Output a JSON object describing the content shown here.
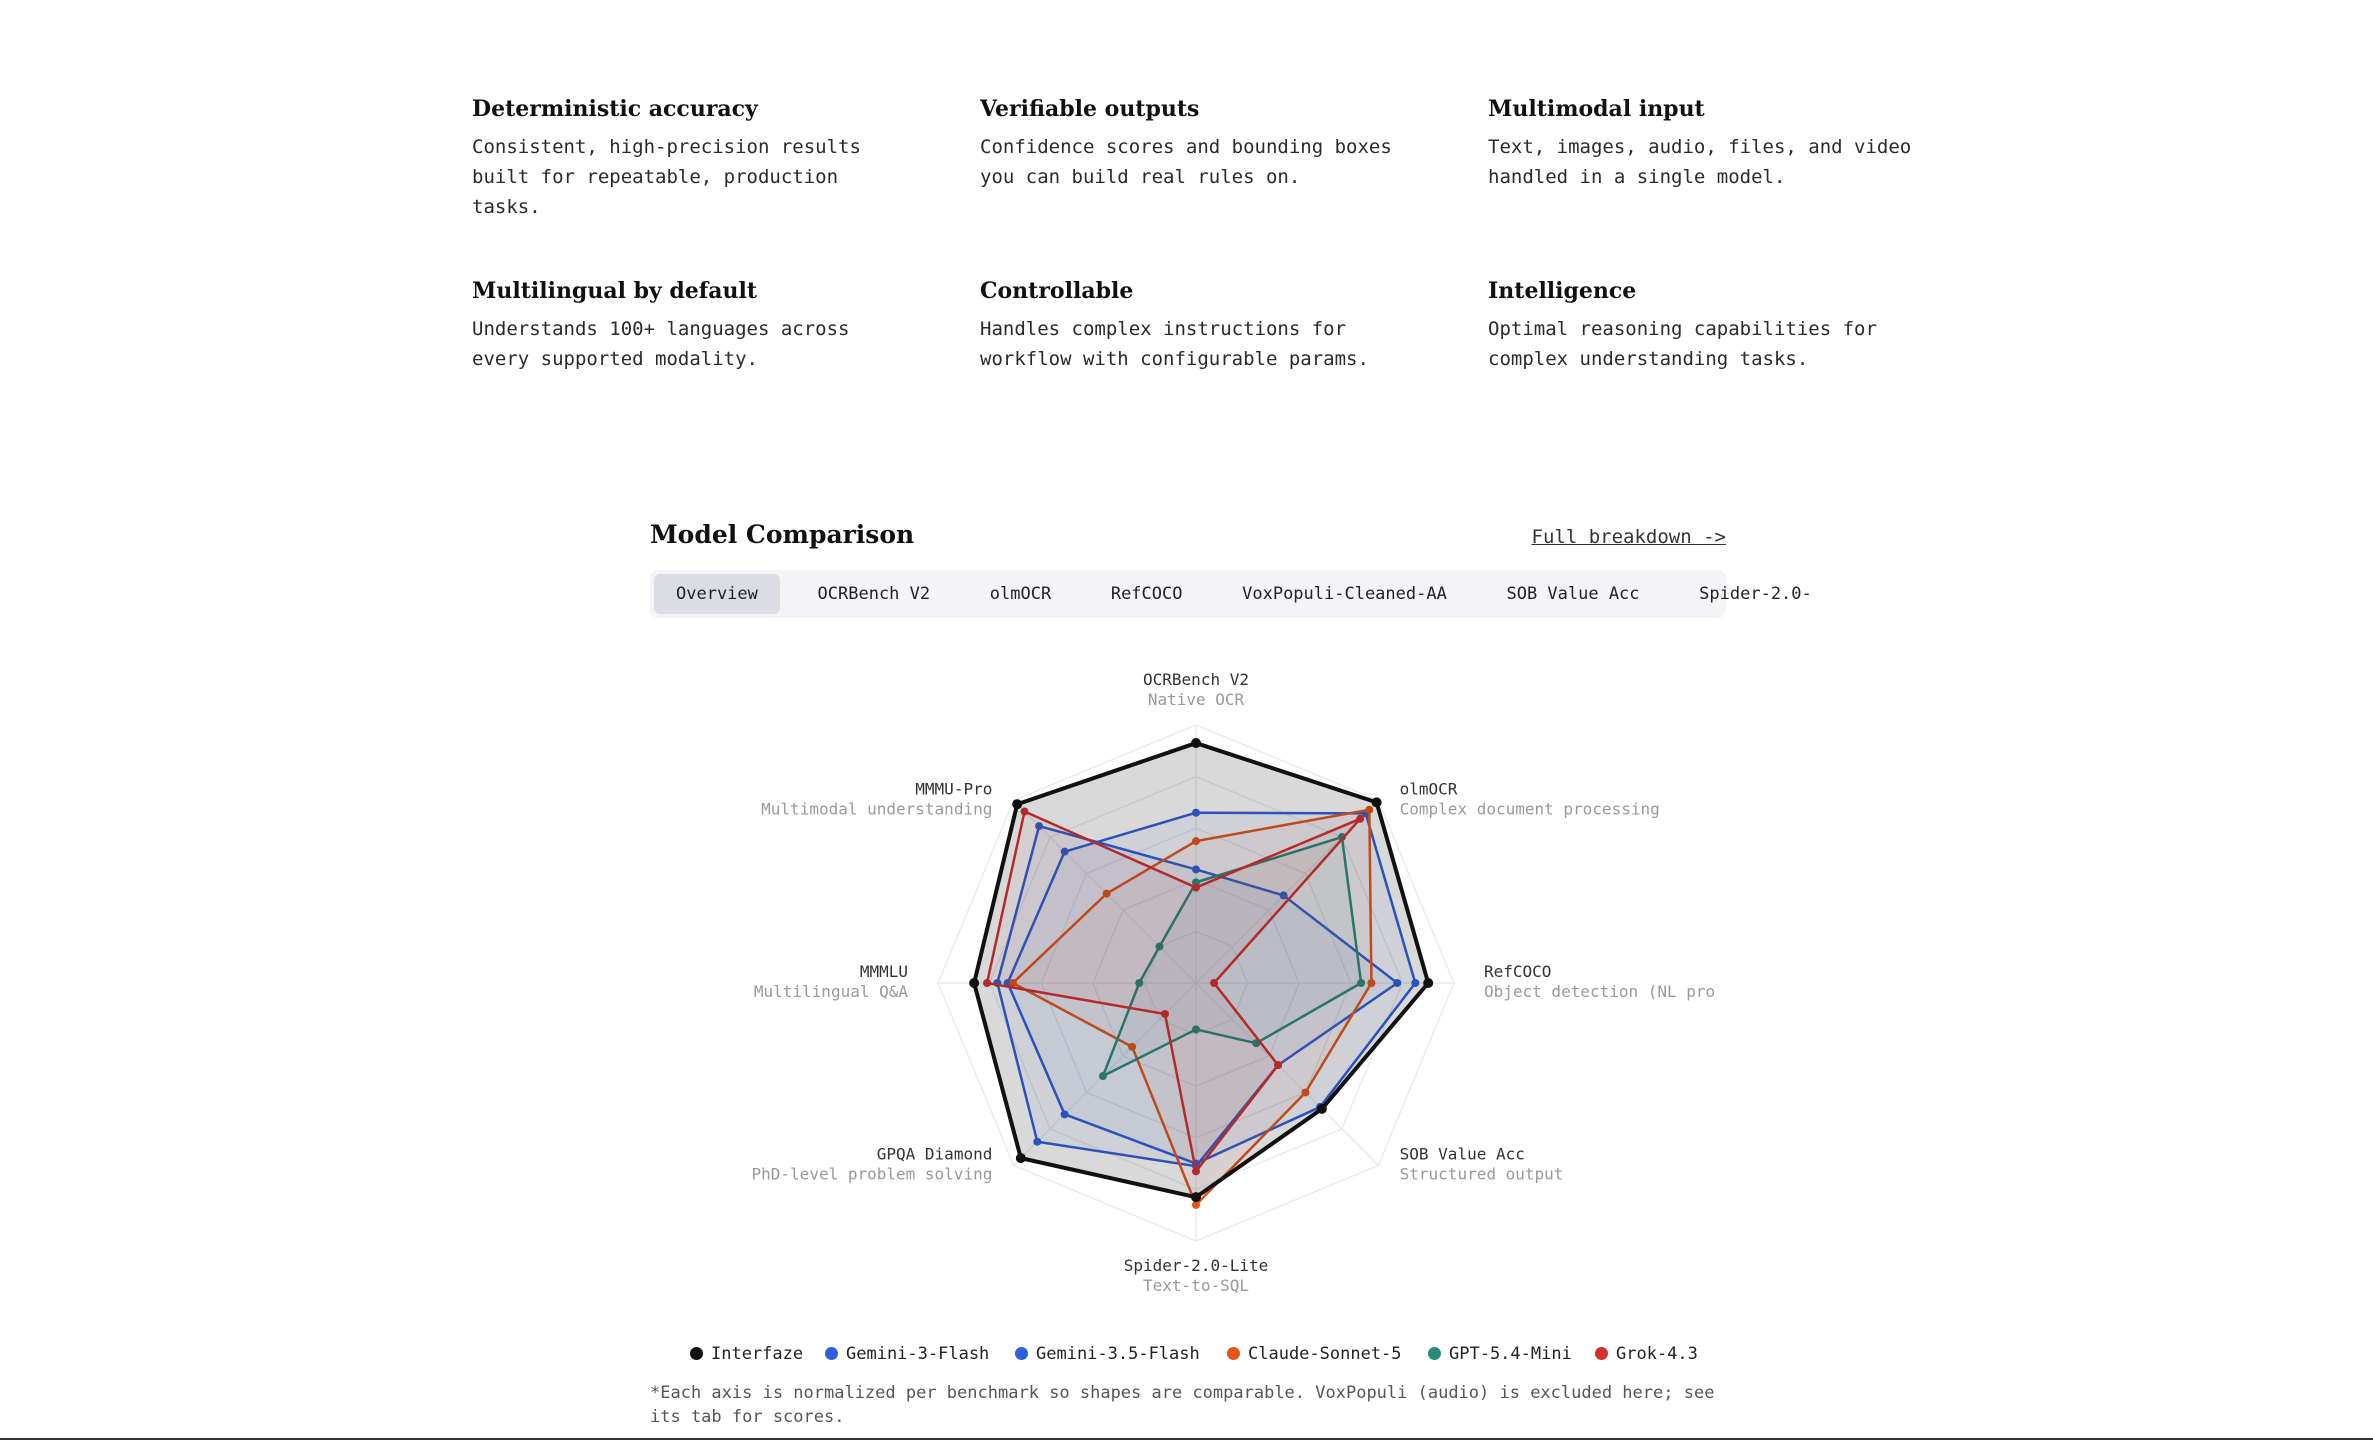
{
  "features": [
    {
      "title": "Deterministic accuracy",
      "text": "Consistent, high-precision results built for repeatable, production tasks."
    },
    {
      "title": "Verifiable outputs",
      "text": "Confidence scores and bounding boxes you can build real rules on."
    },
    {
      "title": "Multimodal input",
      "text": "Text, images, audio, files, and video handled in a single model."
    },
    {
      "title": "Multilingual by default",
      "text": "Understands 100+ languages across every supported modality."
    },
    {
      "title": "Controllable",
      "text": "Handles complex instructions for workflow with configurable params."
    },
    {
      "title": "Intelligence",
      "text": "Optimal reasoning capabilities for complex understanding tasks."
    }
  ],
  "comparison": {
    "title": "Model Comparison",
    "link_label": "Full breakdown ->",
    "tabs": [
      "Overview",
      "OCRBench V2",
      "olmOCR",
      "RefCOCO",
      "VoxPopuli-Cleaned-AA",
      "SOB Value Acc",
      "Spider-2.0-"
    ],
    "active_tab": 0,
    "footnote": "*Each axis is normalized per benchmark so shapes are comparable. VoxPopuli (audio) is excluded here; see its tab for scores."
  },
  "chart_data": {
    "type": "radar",
    "axes": [
      {
        "name": "OCRBench V2",
        "sub": "Native OCR"
      },
      {
        "name": "olmOCR",
        "sub": "Complex document processing"
      },
      {
        "name": "RefCOCO",
        "sub": "Object detection (NL pro"
      },
      {
        "name": "SOB Value Acc",
        "sub": "Structured output"
      },
      {
        "name": "Spider-2.0-Lite",
        "sub": "Text-to-SQL"
      },
      {
        "name": "GPQA Diamond",
        "sub": "PhD-level problem solving"
      },
      {
        "name": "MMMLU",
        "sub": "Multilingual Q&A"
      },
      {
        "name": "MMMU-Pro",
        "sub": "Multimodal understanding"
      }
    ],
    "range": [
      0,
      1
    ],
    "rings": 5,
    "series": [
      {
        "name": "Gemini-3-Flash",
        "color": "#2f5fdb",
        "values": [
          0.66,
          0.93,
          0.85,
          0.68,
          0.7,
          0.72,
          0.73,
          0.72
        ]
      },
      {
        "name": "Gemini-3.5-Flash",
        "color": "#2f5fdb",
        "values": [
          0.44,
          0.48,
          0.78,
          0.45,
          0.71,
          0.87,
          0.77,
          0.86
        ]
      },
      {
        "name": "Claude-Sonnet-5",
        "color": "#e0561d",
        "values": [
          0.55,
          0.95,
          0.68,
          0.6,
          0.86,
          0.35,
          0.71,
          0.49
        ]
      },
      {
        "name": "GPT-5.4-Mini",
        "color": "#2a8a7a",
        "values": [
          0.39,
          0.8,
          0.64,
          0.33,
          0.18,
          0.51,
          0.22,
          0.2
        ]
      },
      {
        "name": "Grok-4.3",
        "color": "#d32f2f",
        "values": [
          0.37,
          0.9,
          0.07,
          0.45,
          0.73,
          0.17,
          0.81,
          0.94
        ]
      },
      {
        "name": "Interfaze",
        "color": "#111111",
        "values": [
          0.93,
          0.99,
          0.9,
          0.69,
          0.83,
          0.96,
          0.86,
          0.98
        ]
      }
    ]
  },
  "legend": [
    {
      "name": "Interfaze",
      "color": "#111111"
    },
    {
      "name": "Gemini-3-Flash",
      "color": "#2f5fdb"
    },
    {
      "name": "Gemini-3.5-Flash",
      "color": "#2f5fdb"
    },
    {
      "name": "Claude-Sonnet-5",
      "color": "#e0561d"
    },
    {
      "name": "GPT-5.4-Mini",
      "color": "#2a8a7a"
    },
    {
      "name": "Grok-4.3",
      "color": "#d32f2f"
    }
  ]
}
